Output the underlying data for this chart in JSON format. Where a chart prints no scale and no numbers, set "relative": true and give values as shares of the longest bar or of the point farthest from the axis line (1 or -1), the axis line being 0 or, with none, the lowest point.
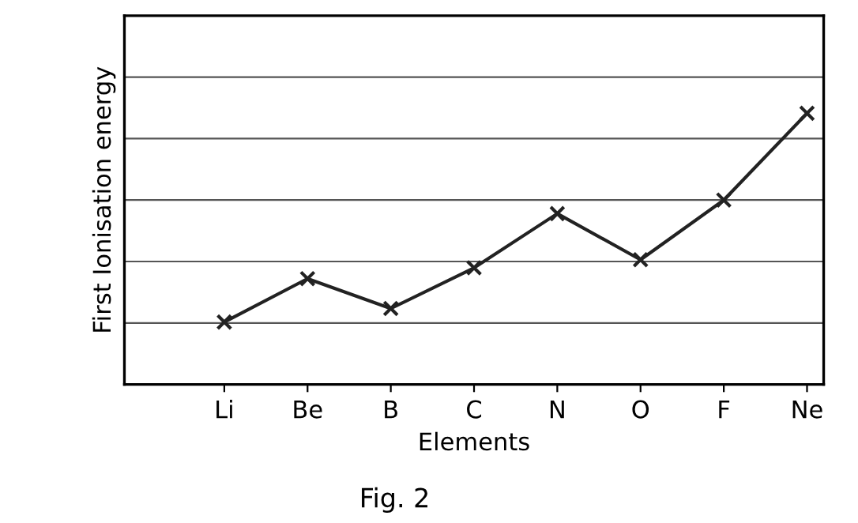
{
  "chart_data": {
    "type": "line",
    "relative": true,
    "xlabel": "Elements",
    "ylabel": "First Ionisation energy",
    "annotations": [
      "Fig. 2"
    ],
    "categories": [
      "Li",
      "Be",
      "B",
      "C",
      "N",
      "O",
      "F",
      "Ne"
    ],
    "series": [
      {
        "color": "#222222",
        "values": [
          0.23,
          0.39,
          0.28,
          0.43,
          0.63,
          0.46,
          0.68,
          1
        ]
      }
    ],
    "marker": "cross",
    "line_style": "solid",
    "grid": "y",
    "legend": false
  }
}
